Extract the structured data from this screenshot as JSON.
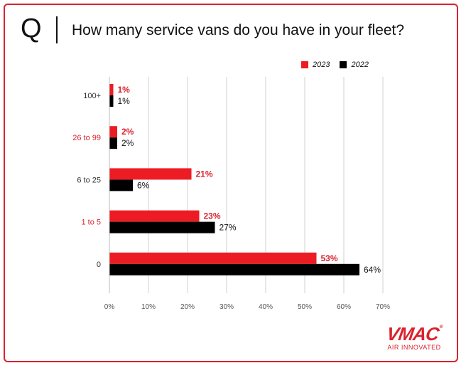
{
  "header": {
    "q_letter": "Q",
    "question": "How many service vans do you have in your fleet?"
  },
  "colors": {
    "s2023": "#ed1c24",
    "s2022": "#000000",
    "highlight_label": "#d9232e",
    "grid": "#d0d0d0"
  },
  "chart_data": {
    "type": "bar",
    "orientation": "horizontal",
    "categories": [
      "100+",
      "26 to 99",
      "6 to 25",
      "1 to 5",
      "0"
    ],
    "category_colors": [
      "#333333",
      "#d9232e",
      "#333333",
      "#d9232e",
      "#333333"
    ],
    "series": [
      {
        "name": "2023",
        "values": [
          1,
          2,
          21,
          23,
          53
        ],
        "labels": [
          "1%",
          "2%",
          "21%",
          "23%",
          "53%"
        ]
      },
      {
        "name": "2022",
        "values": [
          1,
          2,
          6,
          27,
          64
        ],
        "labels": [
          "1%",
          "2%",
          "6%",
          "27%",
          "64%"
        ]
      }
    ],
    "x_ticks": [
      "0%",
      "10%",
      "20%",
      "30%",
      "40%",
      "50%",
      "60%",
      "70%"
    ],
    "xlim": [
      0,
      70
    ],
    "grid": true,
    "legend_position": "top-right"
  },
  "logo": {
    "name": "VMAC",
    "tagline": "AIR INNOVATED"
  }
}
